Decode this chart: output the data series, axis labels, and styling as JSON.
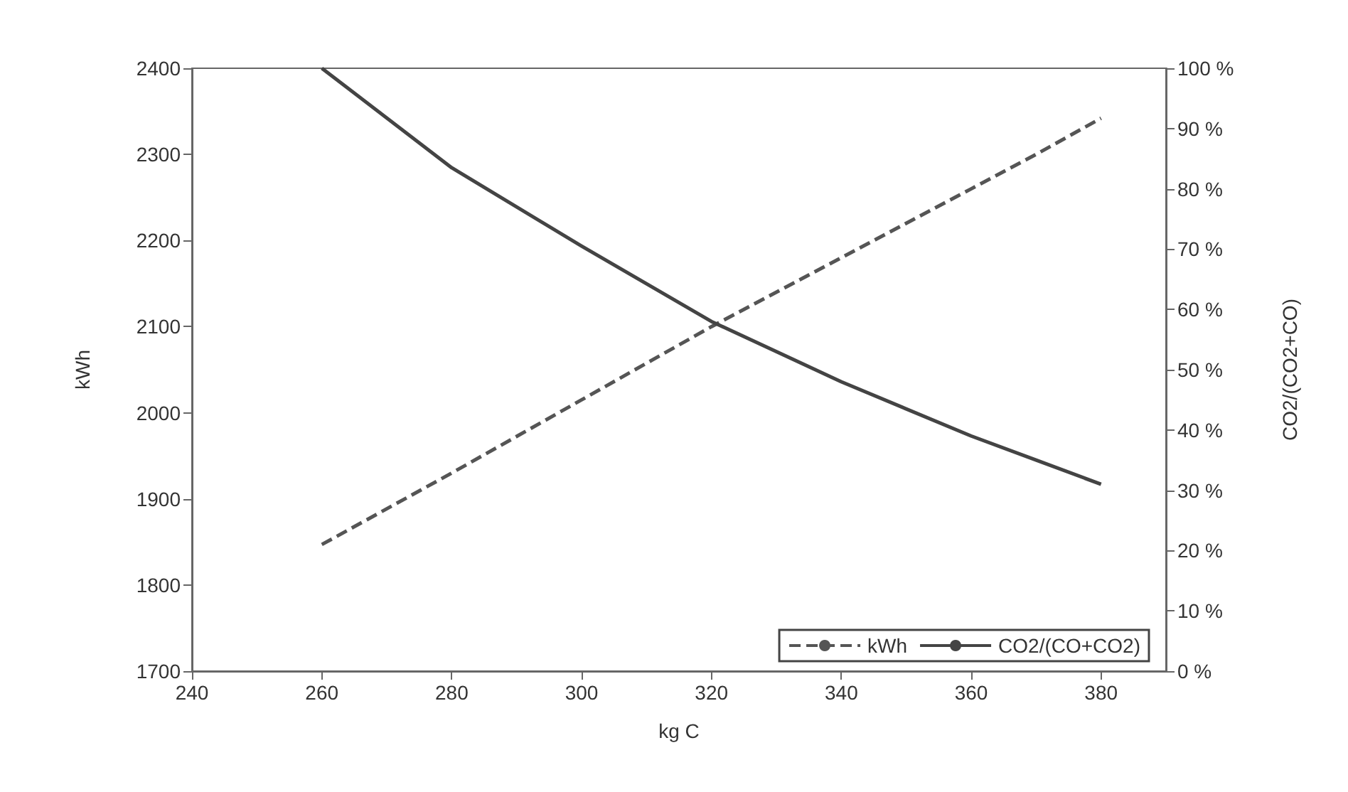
{
  "chart_data": {
    "type": "line",
    "xlabel": "kg C",
    "ylabel": "kWh",
    "y2label": "CO2/(CO2+CO)",
    "xlim": [
      240,
      390
    ],
    "xticks": [
      240,
      260,
      280,
      300,
      320,
      340,
      360,
      380
    ],
    "ylim": [
      1700,
      2400
    ],
    "yticks": [
      1700,
      1800,
      1900,
      2000,
      2100,
      2200,
      2300,
      2400
    ],
    "y2lim": [
      0,
      100
    ],
    "y2ticks": [
      {
        "value": 0,
        "label": "0 %"
      },
      {
        "value": 10,
        "label": "10 %"
      },
      {
        "value": 20,
        "label": "20 %"
      },
      {
        "value": 30,
        "label": "30 %"
      },
      {
        "value": 40,
        "label": "40 %"
      },
      {
        "value": 50,
        "label": "50 %"
      },
      {
        "value": 60,
        "label": "60 %"
      },
      {
        "value": 70,
        "label": "70 %"
      },
      {
        "value": 80,
        "label": "80 %"
      },
      {
        "value": 90,
        "label": "90 %"
      },
      {
        "value": 100,
        "label": "100 %"
      }
    ],
    "x": [
      260,
      280,
      300,
      320,
      340,
      360,
      370,
      380
    ],
    "series": [
      {
        "name": "kWh",
        "color": "#555555",
        "line_style": "dashed",
        "values": [
          1847,
          1930,
          2015,
          2100,
          2180,
          2260,
          2300,
          2342
        ]
      },
      {
        "name": "CO2/(CO+CO2)",
        "color": "#444444",
        "line_style": "solid",
        "axis": "y2",
        "values": [
          100,
          83.5,
          70.5,
          58,
          48,
          39,
          35,
          31
        ]
      }
    ],
    "legend": "bottom right",
    "grid": false,
    "marker": "none"
  }
}
